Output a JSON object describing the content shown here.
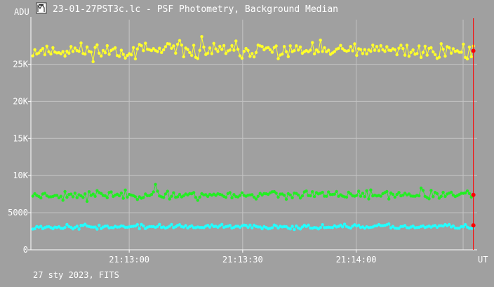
{
  "window": {
    "title": "23-01-27PST3c.lc - PSF Photometry, Background Median",
    "icon": "chart-window-icon"
  },
  "footer": {
    "date_label": "27 sty 2023, FITS"
  },
  "colors": {
    "background": "#a0a0a0",
    "grid": "#c4c4c4",
    "axis": "#ffffff",
    "cursor": "#ff0000",
    "yellow": "#ffff2a",
    "green": "#22ee22",
    "cyan": "#22ffff"
  },
  "chart_data": {
    "type": "line",
    "ylabel": "ADU",
    "xlabel": "UT",
    "ylim": [
      0,
      31000
    ],
    "yticks": [
      {
        "value": 0,
        "label": "0"
      },
      {
        "value": 5000,
        "label": "5000"
      },
      {
        "value": 10000,
        "label": "10K"
      },
      {
        "value": 15000,
        "label": "15K"
      },
      {
        "value": 20000,
        "label": "20K"
      },
      {
        "value": 25000,
        "label": "25K"
      }
    ],
    "xlim": [
      "21:12:34",
      "21:14:32"
    ],
    "xticks": [
      {
        "value": "21:13:00",
        "label": "21:13:00"
      },
      {
        "value": "21:13:30",
        "label": "21:13:30"
      },
      {
        "value": "21:14:00",
        "label": "21:14:00"
      }
    ],
    "cursor_time": "21:14:31",
    "grid": true,
    "series": [
      {
        "color": "yellow",
        "mean": 26800,
        "spread": 1000,
        "min": 22300,
        "max": 29300,
        "seed": 11,
        "end_value": 26800
      },
      {
        "color": "green",
        "mean": 7400,
        "spread": 500,
        "min": 6200,
        "max": 9000,
        "seed": 23,
        "end_value": 7400
      },
      {
        "color": "cyan",
        "mean": 3100,
        "spread": 280,
        "min": 2500,
        "max": 3900,
        "seed": 37,
        "end_value": 3300
      }
    ]
  }
}
